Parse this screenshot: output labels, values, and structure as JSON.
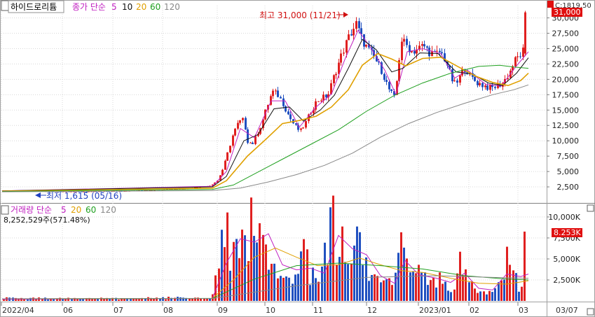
{
  "header": {
    "stock_name": "하이드로리튬",
    "ma_label": "종가 단순",
    "ma_periods": [
      "5",
      "10",
      "20",
      "60",
      "120"
    ],
    "corner_label": "C:1819.50",
    "price_badge": "31,000"
  },
  "volume_header": {
    "label": "거래량 단순",
    "ma_periods": [
      "5",
      "20",
      "60",
      "120"
    ],
    "last_volume": "8,252,529주(571.48%)",
    "volume_badge": "8.253K"
  },
  "annotations": {
    "high": "최고 31,000 (11/21)",
    "low": "최저 1,615 (05/16)"
  },
  "colors": {
    "up": "#e02020",
    "down": "#2050c0",
    "ma5": "#c020c0",
    "ma10": "#101010",
    "ma20": "#e0a000",
    "ma60": "#20a020",
    "ma120": "#888888",
    "grid": "#d8d8d8",
    "badge": "#e01010"
  },
  "chart_data": [
    {
      "type": "candlestick",
      "title": "하이드로리튬",
      "ylim": [
        0,
        32000
      ],
      "y_ticks": [
        "2,500",
        "5,000",
        "7,500",
        "10,000",
        "12,500",
        "15,000",
        "17,500",
        "20,000",
        "22,500",
        "25,000",
        "27,500",
        "30,000"
      ],
      "x_ticks": [
        "2022/04",
        "06",
        "07",
        "08",
        "09",
        "10",
        "11",
        "12",
        "2023/01",
        "02",
        "03",
        "03/07"
      ],
      "grid": true,
      "high": {
        "value": 31000,
        "date": "11/21"
      },
      "low": {
        "value": 1615,
        "date": "05/16"
      },
      "price_path": [
        [
          0,
          1900
        ],
        [
          60,
          1800
        ],
        [
          120,
          1750
        ],
        [
          180,
          1850
        ],
        [
          230,
          2050
        ],
        [
          270,
          2300
        ],
        [
          300,
          2700
        ],
        [
          310,
          3500
        ],
        [
          318,
          5500
        ],
        [
          325,
          8200
        ],
        [
          332,
          11000
        ],
        [
          340,
          13000
        ],
        [
          348,
          13500
        ],
        [
          352,
          10000
        ],
        [
          360,
          9500
        ],
        [
          372,
          12500
        ],
        [
          382,
          16000
        ],
        [
          388,
          18000
        ],
        [
          396,
          17500
        ],
        [
          404,
          16000
        ],
        [
          412,
          14000
        ],
        [
          420,
          12500
        ],
        [
          428,
          11500
        ],
        [
          436,
          13000
        ],
        [
          444,
          15000
        ],
        [
          452,
          16500
        ],
        [
          460,
          17000
        ],
        [
          468,
          17500
        ],
        [
          476,
          20500
        ],
        [
          484,
          23000
        ],
        [
          492,
          25500
        ],
        [
          500,
          27500
        ],
        [
          508,
          29000
        ],
        [
          516,
          26500
        ],
        [
          524,
          25000
        ],
        [
          534,
          23500
        ],
        [
          544,
          21500
        ],
        [
          554,
          18500
        ],
        [
          562,
          17000
        ],
        [
          566,
          20000
        ],
        [
          572,
          26500
        ],
        [
          580,
          25500
        ],
        [
          588,
          24500
        ],
        [
          596,
          25000
        ],
        [
          604,
          25500
        ],
        [
          612,
          24500
        ],
        [
          620,
          24000
        ],
        [
          628,
          24500
        ],
        [
          636,
          23000
        ],
        [
          644,
          20000
        ],
        [
          650,
          19000
        ],
        [
          658,
          21000
        ],
        [
          664,
          22000
        ],
        [
          670,
          20500
        ],
        [
          680,
          19500
        ],
        [
          690,
          19000
        ],
        [
          700,
          18500
        ],
        [
          710,
          19000
        ],
        [
          718,
          19500
        ],
        [
          726,
          21000
        ],
        [
          734,
          23000
        ],
        [
          742,
          24000
        ],
        [
          748,
          25000
        ],
        [
          751,
          30900
        ]
      ],
      "series": [
        {
          "name": "5",
          "path": [
            [
              0,
              1850
            ],
            [
              300,
              2600
            ],
            [
              320,
              5000
            ],
            [
              340,
              12000
            ],
            [
              360,
              10500
            ],
            [
              384,
              16500
            ],
            [
              404,
              16500
            ],
            [
              424,
              12200
            ],
            [
              448,
              15500
            ],
            [
              470,
              17600
            ],
            [
              490,
              23500
            ],
            [
              508,
              28000
            ],
            [
              524,
              25500
            ],
            [
              546,
              21500
            ],
            [
              562,
              17500
            ],
            [
              578,
              24500
            ],
            [
              600,
              25000
            ],
            [
              626,
              24200
            ],
            [
              646,
              20200
            ],
            [
              664,
              21500
            ],
            [
              690,
              19200
            ],
            [
              712,
              18900
            ],
            [
              734,
              22200
            ],
            [
              751,
              24500
            ]
          ]
        },
        {
          "name": "10",
          "path": [
            [
              0,
              1850
            ],
            [
              300,
              2500
            ],
            [
              320,
              4200
            ],
            [
              345,
              10000
            ],
            [
              365,
              11000
            ],
            [
              388,
              15200
            ],
            [
              410,
              15500
            ],
            [
              430,
              13200
            ],
            [
              454,
              15000
            ],
            [
              474,
              17400
            ],
            [
              494,
              21800
            ],
            [
              514,
              26500
            ],
            [
              534,
              24800
            ],
            [
              556,
              21200
            ],
            [
              572,
              21800
            ],
            [
              596,
              24300
            ],
            [
              622,
              24200
            ],
            [
              648,
              21200
            ],
            [
              672,
              20800
            ],
            [
              694,
              19400
            ],
            [
              714,
              19000
            ],
            [
              734,
              21000
            ],
            [
              751,
              23500
            ]
          ]
        },
        {
          "name": "20",
          "path": [
            [
              0,
              1800
            ],
            [
              300,
              2300
            ],
            [
              320,
              3500
            ],
            [
              350,
              7500
            ],
            [
              376,
              10200
            ],
            [
              400,
              12800
            ],
            [
              424,
              13300
            ],
            [
              448,
              14000
            ],
            [
              470,
              15500
            ],
            [
              494,
              18300
            ],
            [
              514,
              22300
            ],
            [
              536,
              24200
            ],
            [
              556,
              23300
            ],
            [
              576,
              22200
            ],
            [
              600,
              23400
            ],
            [
              626,
              23600
            ],
            [
              650,
              22100
            ],
            [
              676,
              20500
            ],
            [
              700,
              19500
            ],
            [
              722,
              19000
            ],
            [
              740,
              19800
            ],
            [
              751,
              21000
            ]
          ]
        },
        {
          "name": "60",
          "path": [
            [
              0,
              1750
            ],
            [
              300,
              2100
            ],
            [
              330,
              2800
            ],
            [
              360,
              4600
            ],
            [
              400,
              7000
            ],
            [
              440,
              9400
            ],
            [
              480,
              11800
            ],
            [
              520,
              14800
            ],
            [
              560,
              17400
            ],
            [
              600,
              19400
            ],
            [
              640,
              21000
            ],
            [
              680,
              22100
            ],
            [
              710,
              22300
            ],
            [
              730,
              22000
            ],
            [
              751,
              21800
            ]
          ]
        },
        {
          "name": "120",
          "path": [
            [
              0,
              1700
            ],
            [
              300,
              1900
            ],
            [
              340,
              2300
            ],
            [
              380,
              3300
            ],
            [
              420,
              4500
            ],
            [
              460,
              6000
            ],
            [
              500,
              8000
            ],
            [
              540,
              10600
            ],
            [
              580,
              12800
            ],
            [
              620,
              14600
            ],
            [
              660,
              16100
            ],
            [
              700,
              17500
            ],
            [
              730,
              18300
            ],
            [
              751,
              19100
            ]
          ]
        }
      ]
    },
    {
      "type": "bar",
      "title": "거래량",
      "ylim": [
        0,
        11500
      ],
      "y_unit": "K",
      "y_ticks": [
        "2,500K",
        "5,000K",
        "7,500K",
        "10,000K"
      ],
      "grid": true,
      "last_value": 8253,
      "volume_path": [
        [
          0,
          300
        ],
        [
          150,
          280
        ],
        [
          300,
          400
        ],
        [
          305,
          1500
        ],
        [
          310,
          5500
        ],
        [
          316,
          7500
        ],
        [
          322,
          10200
        ],
        [
          328,
          6000
        ],
        [
          334,
          8000
        ],
        [
          340,
          5000
        ],
        [
          346,
          7000
        ],
        [
          352,
          3500
        ],
        [
          358,
          9800
        ],
        [
          364,
          6000
        ],
        [
          370,
          7500
        ],
        [
          376,
          10000
        ],
        [
          382,
          5500
        ],
        [
          388,
          4000
        ],
        [
          394,
          3500
        ],
        [
          400,
          3000
        ],
        [
          406,
          4800
        ],
        [
          412,
          2500
        ],
        [
          418,
          3500
        ],
        [
          424,
          2800
        ],
        [
          430,
          6000
        ],
        [
          436,
          4500
        ],
        [
          442,
          2500
        ],
        [
          448,
          3300
        ],
        [
          454,
          2200
        ],
        [
          460,
          6500
        ],
        [
          466,
          4200
        ],
        [
          472,
          10800
        ],
        [
          478,
          5500
        ],
        [
          484,
          7200
        ],
        [
          490,
          6000
        ],
        [
          496,
          4800
        ],
        [
          502,
          3500
        ],
        [
          508,
          8000
        ],
        [
          514,
          5500
        ],
        [
          520,
          4200
        ],
        [
          526,
          3200
        ],
        [
          532,
          2500
        ],
        [
          540,
          2000
        ],
        [
          548,
          2300
        ],
        [
          556,
          1800
        ],
        [
          564,
          2500
        ],
        [
          572,
          6800
        ],
        [
          578,
          4800
        ],
        [
          584,
          3200
        ],
        [
          592,
          2600
        ],
        [
          600,
          3500
        ],
        [
          608,
          2400
        ],
        [
          616,
          2000
        ],
        [
          624,
          3000
        ],
        [
          632,
          2200
        ],
        [
          640,
          1500
        ],
        [
          648,
          2000
        ],
        [
          656,
          4500
        ],
        [
          664,
          2800
        ],
        [
          672,
          1600
        ],
        [
          680,
          1200
        ],
        [
          690,
          1500
        ],
        [
          700,
          1000
        ],
        [
          708,
          2800
        ],
        [
          716,
          1800
        ],
        [
          722,
          5200
        ],
        [
          728,
          3800
        ],
        [
          734,
          2500
        ],
        [
          740,
          1800
        ],
        [
          746,
          1200
        ],
        [
          751,
          8253
        ]
      ],
      "series": [
        {
          "name": "5",
          "path": [
            [
              0,
              200
            ],
            [
              300,
              300
            ],
            [
              320,
              4500
            ],
            [
              340,
              7400
            ],
            [
              360,
              7000
            ],
            [
              380,
              8000
            ],
            [
              400,
              4300
            ],
            [
              420,
              3700
            ],
            [
              440,
              3900
            ],
            [
              460,
              3300
            ],
            [
              480,
              7800
            ],
            [
              500,
              6200
            ],
            [
              520,
              5500
            ],
            [
              540,
              3000
            ],
            [
              560,
              2100
            ],
            [
              575,
              4800
            ],
            [
              595,
              3100
            ],
            [
              620,
              2700
            ],
            [
              640,
              2200
            ],
            [
              660,
              3300
            ],
            [
              680,
              1500
            ],
            [
              700,
              1300
            ],
            [
              720,
              3200
            ],
            [
              740,
              2900
            ],
            [
              751,
              3200
            ]
          ]
        },
        {
          "name": "20",
          "path": [
            [
              0,
              250
            ],
            [
              300,
              300
            ],
            [
              330,
              2500
            ],
            [
              360,
              5200
            ],
            [
              390,
              6300
            ],
            [
              420,
              5200
            ],
            [
              450,
              4200
            ],
            [
              480,
              4300
            ],
            [
              510,
              5100
            ],
            [
              540,
              4300
            ],
            [
              570,
              3600
            ],
            [
              600,
              3400
            ],
            [
              640,
              2700
            ],
            [
              680,
              2100
            ],
            [
              720,
              2000
            ],
            [
              751,
              2400
            ]
          ]
        },
        {
          "name": "60",
          "path": [
            [
              0,
              250
            ],
            [
              300,
              300
            ],
            [
              360,
              2600
            ],
            [
              420,
              4200
            ],
            [
              480,
              4500
            ],
            [
              540,
              4200
            ],
            [
              600,
              3800
            ],
            [
              660,
              3000
            ],
            [
              720,
              2600
            ],
            [
              751,
              2500
            ]
          ]
        },
        {
          "name": "120",
          "path": [
            [
              0,
              250
            ],
            [
              300,
              280
            ],
            [
              420,
              1800
            ],
            [
              520,
              2800
            ],
            [
              620,
              3000
            ],
            [
              700,
              2800
            ],
            [
              751,
              2700
            ]
          ]
        }
      ]
    }
  ]
}
